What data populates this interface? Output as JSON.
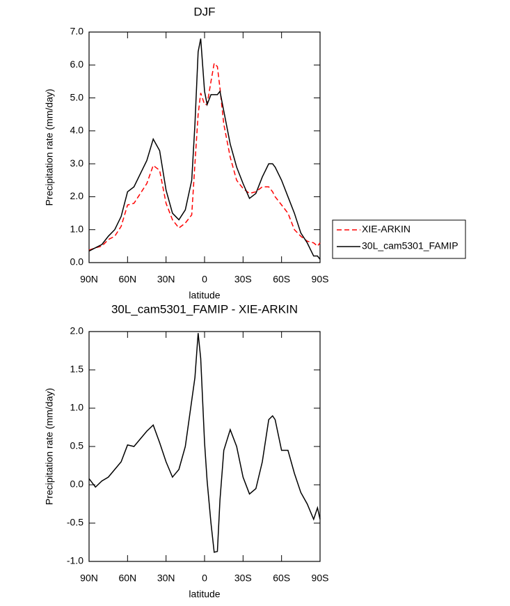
{
  "chart_data": [
    {
      "type": "line",
      "title": "DJF",
      "x_label": "latitude",
      "y_label": "Precipitation rate (mm/day)",
      "x": [
        90,
        85,
        80,
        75,
        70,
        65,
        60,
        55,
        50,
        45,
        40,
        35,
        30,
        25,
        20,
        15,
        10,
        7.5,
        5,
        3,
        0,
        -2,
        -5,
        -7.5,
        -10,
        -12,
        -15,
        -20,
        -25,
        -30,
        -35,
        -40,
        -45,
        -50,
        -53,
        -55,
        -60,
        -65,
        -70,
        -75,
        -80,
        -85,
        -88,
        -90
      ],
      "series": [
        {
          "name": "XIE-ARKIN",
          "color": "#ff0000",
          "dash": "dashed",
          "values": [
            0.38,
            0.45,
            0.5,
            0.7,
            0.8,
            1.1,
            1.75,
            1.8,
            2.1,
            2.4,
            2.95,
            2.8,
            1.8,
            1.3,
            1.05,
            1.2,
            1.45,
            3.0,
            4.5,
            5.15,
            4.8,
            4.8,
            5.5,
            6.05,
            5.95,
            5.3,
            4.2,
            3.2,
            2.5,
            2.25,
            2.1,
            2.15,
            2.3,
            2.3,
            2.15,
            2.0,
            1.75,
            1.5,
            1.0,
            0.8,
            0.65,
            0.6,
            0.5,
            0.6
          ]
        },
        {
          "name": "30L_cam5301_FAMIP",
          "color": "#000000",
          "dash": "solid",
          "values": [
            0.35,
            0.45,
            0.55,
            0.8,
            1.0,
            1.4,
            2.15,
            2.3,
            2.7,
            3.1,
            3.75,
            3.4,
            2.2,
            1.5,
            1.3,
            1.6,
            2.5,
            4.2,
            6.4,
            6.8,
            5.2,
            4.8,
            5.1,
            5.1,
            5.1,
            5.2,
            4.6,
            3.6,
            2.9,
            2.4,
            1.95,
            2.1,
            2.6,
            3.0,
            3.0,
            2.9,
            2.5,
            2.0,
            1.5,
            0.9,
            0.6,
            0.2,
            0.2,
            0.1
          ]
        }
      ],
      "xlim": [
        90,
        -90
      ],
      "xticks": [
        {
          "value": 90,
          "label": "90N"
        },
        {
          "value": 60,
          "label": "60N"
        },
        {
          "value": 30,
          "label": "30N"
        },
        0,
        {
          "value": -30,
          "label": "30S"
        },
        {
          "value": -60,
          "label": "60S"
        },
        {
          "value": -90,
          "label": "90S"
        }
      ],
      "ylim": [
        0,
        7
      ],
      "yticks": [
        {
          "value": 0,
          "label": "0.0"
        },
        {
          "value": 1,
          "label": "1.0"
        },
        {
          "value": 2,
          "label": "2.0"
        },
        {
          "value": 3,
          "label": "3.0"
        },
        {
          "value": 4,
          "label": "4.0"
        },
        {
          "value": 5,
          "label": "5.0"
        },
        {
          "value": 6,
          "label": "6.0"
        },
        {
          "value": 7,
          "label": "7.0"
        }
      ],
      "legend": "right"
    },
    {
      "type": "line",
      "title": "30L_cam5301_FAMIP - XIE-ARKIN",
      "x_label": "latitude",
      "y_label": "Precipitation rate (mm/day)",
      "x": [
        90,
        85,
        80,
        75,
        70,
        65,
        60,
        55,
        50,
        45,
        40,
        35,
        30,
        25,
        20,
        15,
        10,
        7.5,
        5,
        3,
        0,
        -2,
        -5,
        -7.5,
        -10,
        -12,
        -15,
        -20,
        -25,
        -30,
        -35,
        -40,
        -45,
        -50,
        -53,
        -55,
        -60,
        -65,
        -70,
        -75,
        -80,
        -85,
        -88,
        -90
      ],
      "values": [
        0.08,
        -0.03,
        0.05,
        0.1,
        0.2,
        0.3,
        0.52,
        0.5,
        0.6,
        0.7,
        0.78,
        0.55,
        0.3,
        0.1,
        0.2,
        0.5,
        1.1,
        1.4,
        1.98,
        1.65,
        0.55,
        0.05,
        -0.5,
        -0.88,
        -0.87,
        -0.2,
        0.45,
        0.72,
        0.5,
        0.1,
        -0.12,
        -0.05,
        0.3,
        0.85,
        0.9,
        0.85,
        0.45,
        0.45,
        0.15,
        -0.1,
        -0.25,
        -0.45,
        -0.3,
        -0.45
      ],
      "color": "#000000",
      "xlim": [
        90,
        -90
      ],
      "xticks": [
        {
          "value": 90,
          "label": "90N"
        },
        {
          "value": 60,
          "label": "60N"
        },
        {
          "value": 30,
          "label": "30N"
        },
        0,
        {
          "value": -30,
          "label": "30S"
        },
        {
          "value": -60,
          "label": "60S"
        },
        {
          "value": -90,
          "label": "90S"
        }
      ],
      "ylim": [
        -1,
        2
      ],
      "yticks": [
        {
          "value": -1,
          "label": "-1.0"
        },
        -0.5,
        {
          "value": 0,
          "label": "0.0"
        },
        0.5,
        {
          "value": 1,
          "label": "1.0"
        },
        1.5,
        {
          "value": 2,
          "label": "2.0"
        }
      ]
    }
  ]
}
